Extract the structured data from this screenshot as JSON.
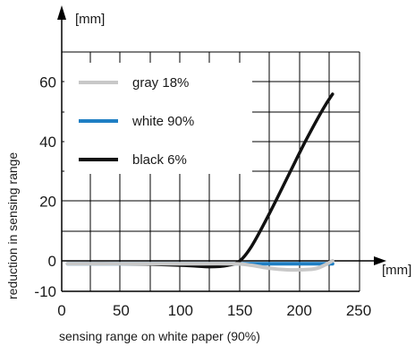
{
  "chart_data": {
    "type": "line",
    "title": "",
    "xlabel": "sensing range on white paper (90%)",
    "ylabel": "reduction in sensing range",
    "x_unit": "[mm]",
    "y_unit": "[mm]",
    "xlim": [
      0,
      250
    ],
    "ylim": [
      -10,
      70
    ],
    "xticks": [
      0,
      50,
      100,
      150,
      200,
      250
    ],
    "yticks": [
      -10,
      0,
      20,
      40,
      60
    ],
    "grid": true,
    "legend_position": "top-left",
    "series": [
      {
        "name": "gray 18%",
        "color": "#c8c8c8",
        "x": [
          5,
          50,
          100,
          145,
          160,
          175,
          190,
          200,
          215,
          228
        ],
        "y": [
          -1,
          -1,
          -1,
          -1,
          -1.5,
          -2.5,
          -3,
          -3,
          -2.5,
          0
        ]
      },
      {
        "name": "white 90%",
        "color": "#1f7fc4",
        "x": [
          5,
          50,
          100,
          150,
          200,
          228
        ],
        "y": [
          -1,
          -1,
          -1,
          -1,
          -1,
          -1
        ]
      },
      {
        "name": "black 6%",
        "color": "#111111",
        "x": [
          5,
          50,
          100,
          125,
          140,
          150,
          160,
          175,
          190,
          205,
          220,
          228
        ],
        "y": [
          -1,
          -1,
          -1.5,
          -2,
          -1.5,
          0,
          5,
          16,
          28,
          40,
          51,
          56
        ]
      }
    ]
  }
}
